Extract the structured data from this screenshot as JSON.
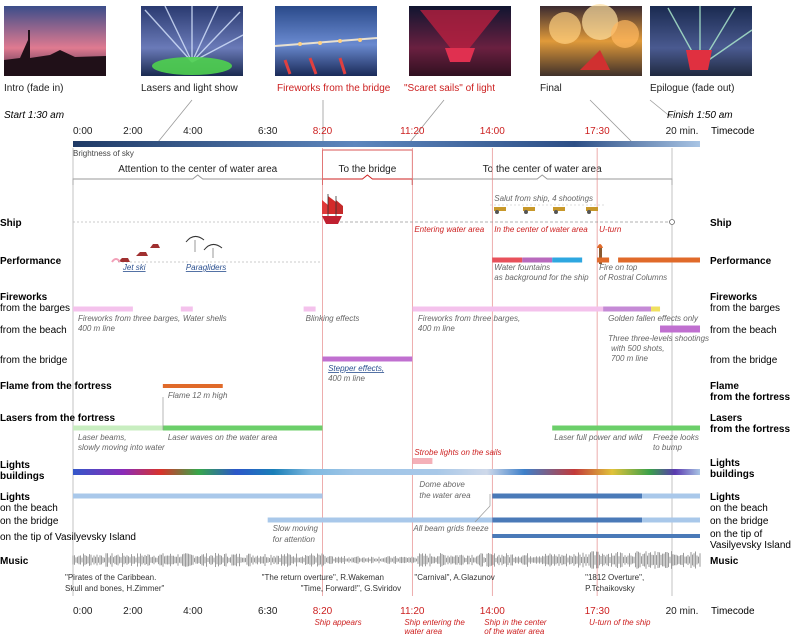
{
  "thumbnails": [
    {
      "label": "Intro (fade in)",
      "color": "#222222"
    },
    {
      "label": "Lasers and light show",
      "color": "#222222"
    },
    {
      "label": "Fireworks from the bridge",
      "color": "#cc1f1f"
    },
    {
      "label": "\"Scaret sails\" of light",
      "color": "#cc1f1f"
    },
    {
      "label": "Final",
      "color": "#222222"
    },
    {
      "label": "Epilogue (fade out)",
      "color": "#222222"
    }
  ],
  "start_label": "Start 1:30 am",
  "finish_label": "Finish 1:50 am",
  "timecode_label": "Timecode",
  "brightness_label": "Brightness of sky",
  "ticks": [
    {
      "label": "0:00",
      "min": 0,
      "highlight": false
    },
    {
      "label": "2:00",
      "min": 2,
      "highlight": false
    },
    {
      "label": "4:00",
      "min": 4,
      "highlight": false
    },
    {
      "label": "6:30",
      "min": 6.5,
      "highlight": false
    },
    {
      "label": "8:20",
      "min": 8.33,
      "highlight": true
    },
    {
      "label": "11:20",
      "min": 11.33,
      "highlight": true
    },
    {
      "label": "14:00",
      "min": 14,
      "highlight": true
    },
    {
      "label": "17:30",
      "min": 17.5,
      "highlight": true
    },
    {
      "label": "20 min.",
      "min": 20,
      "highlight": false
    }
  ],
  "bottom_events": [
    {
      "text": "Ship appears",
      "min": 8.33
    },
    {
      "text": "Ship entering the water area",
      "min": 11.33
    },
    {
      "text": "Ship in the center of the water area",
      "min": 14
    },
    {
      "text": "U-turn of the ship",
      "min": 17.5
    }
  ],
  "phases": [
    {
      "label": "Attention to the center of water area",
      "from": 0,
      "to": 8.33,
      "color": "#999999"
    },
    {
      "label": "To the bridge",
      "from": 8.33,
      "to": 11.33,
      "color": "#cc1f1f"
    },
    {
      "label": "To the center of water area",
      "from": 11.33,
      "to": 20,
      "color": "#999999"
    }
  ],
  "left_labels": [
    {
      "text": "Ship",
      "bold": true
    },
    {
      "text": "Performance",
      "bold": true
    },
    {
      "text": "Fireworks",
      "bold": true
    },
    {
      "text": "from the barges",
      "bold": false
    },
    {
      "text": "from the beach",
      "bold": false
    },
    {
      "text": "from the bridge",
      "bold": false
    },
    {
      "text": "Flame from the fortress",
      "bold": true
    },
    {
      "text": "Lasers from the fortress",
      "bold": true
    },
    {
      "text": "Lights",
      "bold": true
    },
    {
      "text": "buildings",
      "bold": true
    },
    {
      "text": "Lights",
      "bold": true
    },
    {
      "text": "on the beach",
      "bold": false
    },
    {
      "text": "on the bridge",
      "bold": false
    },
    {
      "text": "on the tip of Vasilyevsky Island",
      "bold": false
    },
    {
      "text": "Music",
      "bold": true
    }
  ],
  "right_labels": [
    {
      "text": "Ship",
      "bold": true
    },
    {
      "text": "Performance",
      "bold": true
    },
    {
      "text": "Fireworks",
      "bold": true
    },
    {
      "text": "from the barges",
      "bold": false
    },
    {
      "text": "from the beach",
      "bold": false
    },
    {
      "text": "from the bridge",
      "bold": false
    },
    {
      "text": "Flame",
      "bold": true
    },
    {
      "text": "from the fortress",
      "bold": true
    },
    {
      "text": "Lasers",
      "bold": true
    },
    {
      "text": "from the fortress",
      "bold": true
    },
    {
      "text": "Lights",
      "bold": true
    },
    {
      "text": "buildings",
      "bold": true
    },
    {
      "text": "Lights",
      "bold": true
    },
    {
      "text": "on the beach",
      "bold": false
    },
    {
      "text": "on the bridge",
      "bold": false
    },
    {
      "text": "on the tip of",
      "bold": false
    },
    {
      "text": "Vasilyevsky Island",
      "bold": false
    },
    {
      "text": "Music",
      "bold": true
    }
  ],
  "bars": [
    {
      "row": "barges",
      "from": 0,
      "to": 2.0,
      "color": "#f4c2ec"
    },
    {
      "row": "barges",
      "from": 3.6,
      "to": 4.0,
      "color": "#f4c2ec"
    },
    {
      "row": "barges",
      "from": 7.7,
      "to": 8.1,
      "color": "#f4c2ec"
    },
    {
      "row": "barges",
      "from": 11.33,
      "to": 17.7,
      "color": "#f4c2ec"
    },
    {
      "row": "barges",
      "from": 17.7,
      "to": 19.3,
      "color": "#c58ad6"
    },
    {
      "row": "barges",
      "from": 19.3,
      "to": 19.6,
      "color": "#f0e060"
    },
    {
      "row": "beach_fw",
      "from": 19.6,
      "to": 20,
      "color": "#c070d0"
    },
    {
      "row": "bridge_fw",
      "from": 8.33,
      "to": 11.33,
      "color": "#c070d0"
    },
    {
      "row": "flame",
      "from": 3.0,
      "to": 5.0,
      "color": "#e06a2a"
    },
    {
      "row": "perf",
      "from": 14.0,
      "to": 15.0,
      "color": "#e8515b"
    },
    {
      "row": "perf",
      "from": 15.0,
      "to": 16.0,
      "color": "#b86abd"
    },
    {
      "row": "perf",
      "from": 16.0,
      "to": 17.0,
      "color": "#2ea7e0"
    },
    {
      "row": "perf",
      "from": 17.5,
      "to": 17.9,
      "color": "#e06a2a"
    },
    {
      "row": "perf",
      "from": 18.2,
      "to": 20,
      "color": "#e06a2a"
    },
    {
      "row": "lasers",
      "from": 0,
      "to": 3.0,
      "color": "#c8eec0"
    },
    {
      "row": "lasers",
      "from": 3.0,
      "to": 8.33,
      "color": "#6ccf6a"
    },
    {
      "row": "lasers",
      "from": 16.0,
      "to": 20,
      "color": "#6ccf6a"
    },
    {
      "row": "l_beach",
      "from": 0,
      "to": 8.33,
      "color": "#a9c8ea"
    },
    {
      "row": "l_beach",
      "from": 14.0,
      "to": 19.0,
      "color": "#4a7ab8"
    },
    {
      "row": "l_beach",
      "from": 19.0,
      "to": 20,
      "color": "#a9c8ea"
    },
    {
      "row": "l_bridge",
      "from": 6.5,
      "to": 14.0,
      "color": "#a9c8ea"
    },
    {
      "row": "l_bridge",
      "from": 14.0,
      "to": 19.0,
      "color": "#4a7ab8"
    },
    {
      "row": "l_bridge",
      "from": 19.0,
      "to": 20,
      "color": "#a9c8ea"
    },
    {
      "row": "l_tip",
      "from": 14.0,
      "to": 20,
      "color": "#4a7ab8"
    },
    {
      "row": "strobe",
      "from": 11.33,
      "to": 12.0,
      "color": "#f4b0b8"
    }
  ],
  "annotations": [
    {
      "text": "Jet ski",
      "min": 1.6,
      "row": "perf_note",
      "color": "#2a4f8f",
      "underline": true
    },
    {
      "text": "Paragliders",
      "min": 3.7,
      "row": "perf_note",
      "color": "#2a4f8f",
      "underline": true
    },
    {
      "text": "Water fountains",
      "min": 14.0,
      "row": "perf_note",
      "color": "#666666",
      "underline": false
    },
    {
      "text": "as background for the ship",
      "min": 14.0,
      "row": "perf_note2",
      "color": "#666666",
      "underline": false
    },
    {
      "text": "Fire on top",
      "min": 17.5,
      "row": "perf_note",
      "color": "#666666",
      "underline": false
    },
    {
      "text": "of Rostral Columns",
      "min": 17.5,
      "row": "perf_note2",
      "color": "#666666",
      "underline": false
    },
    {
      "text": "Fireworks from three barges,",
      "min": 0.1,
      "row": "barges_note",
      "color": "#666666",
      "underline": false
    },
    {
      "text": "400 m line",
      "min": 0.1,
      "row": "barges_note2",
      "color": "#666666",
      "underline": false
    },
    {
      "text": "Water shells",
      "min": 3.6,
      "row": "barges_note",
      "color": "#666666",
      "underline": false
    },
    {
      "text": "Blinking effects",
      "min": 7.7,
      "row": "barges_note",
      "color": "#666666",
      "underline": false
    },
    {
      "text": "Fireworks from three barges,",
      "min": 11.45,
      "row": "barges_note",
      "color": "#666666",
      "underline": false
    },
    {
      "text": "400 m line",
      "min": 11.45,
      "row": "barges_note2",
      "color": "#666666",
      "underline": false
    },
    {
      "text": "Golden fallen effects only",
      "min": 17.8,
      "row": "barges_note",
      "color": "#666666",
      "underline": false
    },
    {
      "text": "Three three-levels shootings",
      "min": 17.8,
      "row": "beach_note",
      "color": "#666666",
      "underline": false
    },
    {
      "text": "with 500 shots,",
      "min": 17.9,
      "row": "beach_note2",
      "color": "#666666",
      "underline": false
    },
    {
      "text": "700 m line",
      "min": 17.9,
      "row": "beach_note3",
      "color": "#666666",
      "underline": false
    },
    {
      "text": "Stepper effects,",
      "min": 8.45,
      "row": "bridge_note",
      "color": "#2a4f8f",
      "underline": true
    },
    {
      "text": "400 m line",
      "min": 8.45,
      "row": "bridge_note2",
      "color": "#666666",
      "underline": false
    },
    {
      "text": "Flame 12 m high",
      "min": 3.1,
      "row": "flame_note",
      "color": "#666666",
      "underline": false
    },
    {
      "text": "Laser beams,",
      "min": 0.1,
      "row": "lasers_note",
      "color": "#666666",
      "underline": false
    },
    {
      "text": "slowly moving into water",
      "min": 0.1,
      "row": "lasers_note2",
      "color": "#666666",
      "underline": false
    },
    {
      "text": "Laser waves on the water area",
      "min": 3.1,
      "row": "lasers_note",
      "color": "#666666",
      "underline": false
    },
    {
      "text": "Laser full power and wild",
      "min": 16.0,
      "row": "lasers_note",
      "color": "#666666",
      "underline": false
    },
    {
      "text": "Freeze looks",
      "min": 19.5,
      "row": "lasers_note",
      "color": "#666666",
      "underline": false
    },
    {
      "text": "to bump",
      "min": 19.5,
      "row": "lasers_note2",
      "color": "#666666",
      "underline": false
    },
    {
      "text": "Strobe lights on the sails",
      "min": 11.33,
      "row": "strobe_note",
      "color": "#cc1f1f",
      "underline": false
    },
    {
      "text": "Dome above",
      "min": 11.5,
      "row": "dome_note",
      "color": "#666666",
      "underline": false
    },
    {
      "text": "the water area",
      "min": 11.5,
      "row": "dome_note2",
      "color": "#666666",
      "underline": false
    },
    {
      "text": "All beam grids freeze",
      "min": 11.3,
      "row": "grids_note",
      "color": "#666666",
      "underline": false
    },
    {
      "text": "Slow moving",
      "min": 6.6,
      "row": "slow_note",
      "color": "#666666",
      "underline": false
    },
    {
      "text": "for attention",
      "min": 6.6,
      "row": "slow_note2",
      "color": "#666666",
      "underline": false
    },
    {
      "text": "Salut from ship, 4 shootings",
      "min": 14.0,
      "row": "salut_note",
      "color": "#666666",
      "underline": false
    },
    {
      "text": "Entering water area",
      "min": 11.33,
      "row": "ship_note",
      "color": "#cc1f1f",
      "underline": false
    },
    {
      "text": "In the center of water area",
      "min": 14.0,
      "row": "ship_note",
      "color": "#cc1f1f",
      "underline": false
    },
    {
      "text": "U-turn",
      "min": 17.5,
      "row": "ship_note",
      "color": "#cc1f1f",
      "underline": false
    }
  ],
  "music": [
    {
      "text": "\"Pirates of the Caribbean.",
      "min": 0,
      "line": 1
    },
    {
      "text": "Skull and bones, H.Zimmer\"",
      "min": 0,
      "line": 2
    },
    {
      "text": "\"The return overture\", R.Wakeman",
      "min": 6.5,
      "line": 1
    },
    {
      "text": "\"Time, Forward!\", G.Sviridov",
      "min": 7.8,
      "line": 2
    },
    {
      "text": "\"Carnival\", A.Glazunov",
      "min": 11.6,
      "line": 1
    },
    {
      "text": "\"1812 Overture\",",
      "min": 17.3,
      "line": 1
    },
    {
      "text": "P.Tchaikovsky",
      "min": 17.3,
      "line": 2
    }
  ]
}
